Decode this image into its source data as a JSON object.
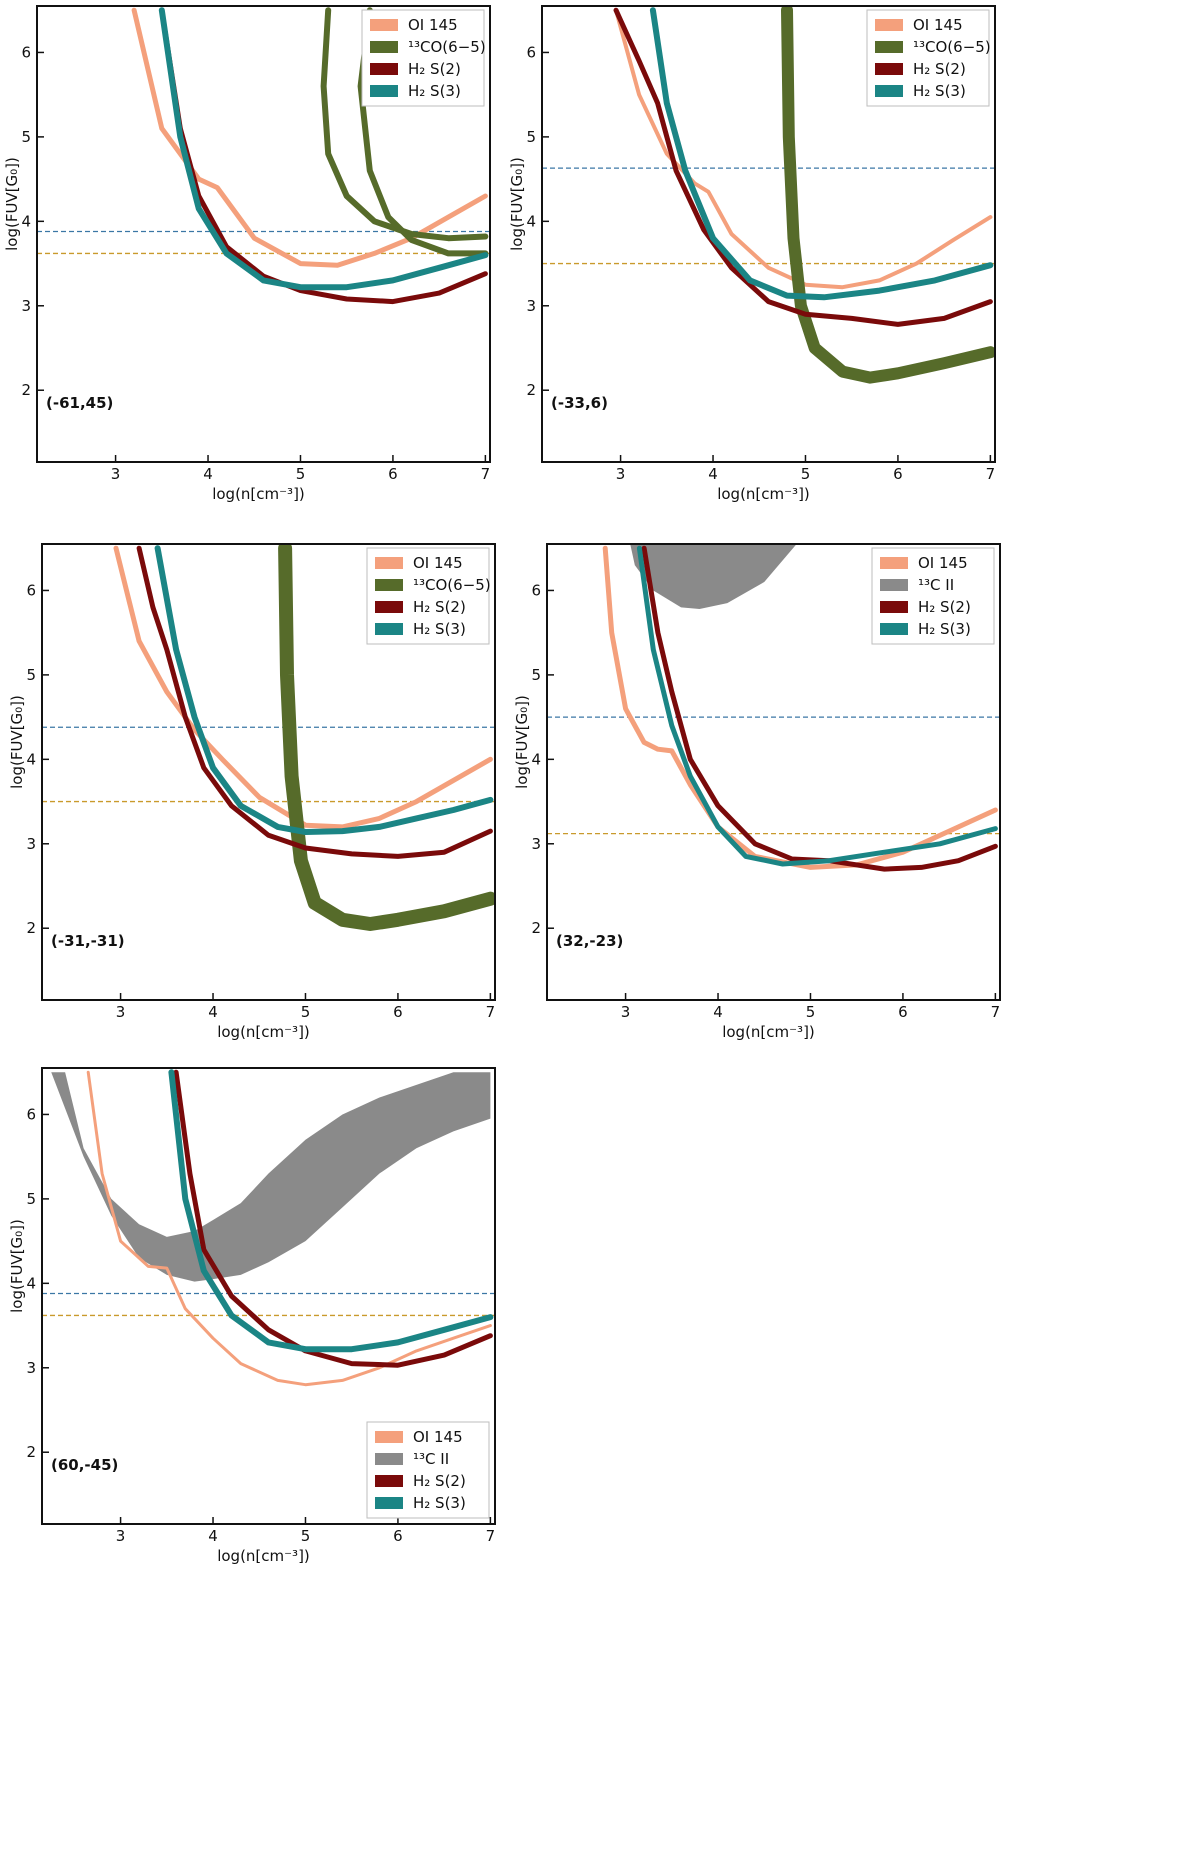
{
  "colors": {
    "oi": "#f4a07c",
    "co13": "#566b2a",
    "c13": "#8a8a8a",
    "h2s2": "#7a0a0a",
    "h2s3": "#1b8585",
    "hline_blue": "#3b77a5",
    "hline_orange": "#c99a2c",
    "axes": "#111111"
  },
  "chart_data": [
    {
      "type": "line",
      "position_label": "(-61,45)",
      "xlabel": "log(n[cm⁻³])",
      "ylabel": "log(FUV[G₀])",
      "xlim": [
        2.15,
        7.05
      ],
      "ylim": [
        1.15,
        6.55
      ],
      "xticks": [
        "3",
        "4",
        "5",
        "6",
        "7"
      ],
      "yticks": [
        "2",
        "3",
        "4",
        "5",
        "6"
      ],
      "legend_position": "top-right",
      "legend": [
        {
          "label": "OI 145",
          "color_key": "oi"
        },
        {
          "label": "¹³CO(6−5)",
          "color_key": "co13"
        },
        {
          "label": "H₂ S(2)",
          "color_key": "h2s2"
        },
        {
          "label": "H₂ S(3)",
          "color_key": "h2s3"
        }
      ],
      "hlines": [
        {
          "y": 3.88,
          "color_key": "hline_blue"
        },
        {
          "y": 3.62,
          "color_key": "hline_orange"
        }
      ],
      "series": [
        {
          "name": "OI 145",
          "color_key": "oi",
          "width": 5,
          "x": [
            3.2,
            3.5,
            3.9,
            4.1,
            4.5,
            5.0,
            5.4,
            5.8,
            6.2,
            6.6,
            7.0
          ],
          "y": [
            6.5,
            5.1,
            4.5,
            4.4,
            3.8,
            3.5,
            3.48,
            3.62,
            3.8,
            4.05,
            4.3
          ]
        },
        {
          "name": "13CO(6-5) upper",
          "color_key": "co13",
          "width": 6,
          "x": [
            5.3,
            5.25,
            5.3,
            5.5,
            5.8,
            6.2,
            6.6,
            7.0
          ],
          "y": [
            6.5,
            5.6,
            4.8,
            4.3,
            4.0,
            3.85,
            3.8,
            3.82
          ]
        },
        {
          "name": "13CO(6-5) lower",
          "color_key": "co13",
          "width": 6,
          "x": [
            5.75,
            5.65,
            5.75,
            5.95,
            6.2,
            6.6,
            7.0
          ],
          "y": [
            6.5,
            5.6,
            4.6,
            4.05,
            3.78,
            3.62,
            3.62
          ]
        },
        {
          "name": "H₂ S(2)",
          "color_key": "h2s2",
          "width": 5,
          "x": [
            3.5,
            3.7,
            3.9,
            4.2,
            4.6,
            5.0,
            5.5,
            6.0,
            6.5,
            7.0
          ],
          "y": [
            6.5,
            5.1,
            4.3,
            3.7,
            3.35,
            3.18,
            3.08,
            3.05,
            3.15,
            3.38
          ]
        },
        {
          "name": "H₂ S(3)",
          "color_key": "h2s3",
          "width": 6,
          "x": [
            3.5,
            3.7,
            3.9,
            4.2,
            4.6,
            5.0,
            5.5,
            6.0,
            6.5,
            7.0
          ],
          "y": [
            6.5,
            5.0,
            4.15,
            3.62,
            3.3,
            3.22,
            3.22,
            3.3,
            3.45,
            3.6
          ]
        }
      ]
    },
    {
      "type": "line",
      "position_label": "(-33,6)",
      "xlabel": "log(n[cm⁻³])",
      "ylabel": "log(FUV[G₀])",
      "xlim": [
        2.15,
        7.05
      ],
      "ylim": [
        1.15,
        6.55
      ],
      "xticks": [
        "3",
        "4",
        "5",
        "6",
        "7"
      ],
      "yticks": [
        "2",
        "3",
        "4",
        "5",
        "6"
      ],
      "legend_position": "top-right",
      "legend": [
        {
          "label": "OI 145",
          "color_key": "oi"
        },
        {
          "label": "¹³CO(6−5)",
          "color_key": "co13"
        },
        {
          "label": "H₂ S(2)",
          "color_key": "h2s2"
        },
        {
          "label": "H₂ S(3)",
          "color_key": "h2s3"
        }
      ],
      "hlines": [
        {
          "y": 4.63,
          "color_key": "hline_blue"
        },
        {
          "y": 3.5,
          "color_key": "hline_orange"
        }
      ],
      "series": [
        {
          "name": "OI 145",
          "color_key": "oi",
          "width": 4,
          "x": [
            2.95,
            3.2,
            3.5,
            3.8,
            3.95,
            4.2,
            4.6,
            5.0,
            5.4,
            5.8,
            6.2,
            6.6,
            7.0
          ],
          "y": [
            6.5,
            5.5,
            4.8,
            4.45,
            4.35,
            3.85,
            3.45,
            3.25,
            3.22,
            3.3,
            3.5,
            3.78,
            4.05
          ]
        },
        {
          "name": "13CO(6-5)",
          "color_key": "co13",
          "width": 12,
          "x": [
            4.8,
            4.82,
            4.87,
            4.95,
            5.1,
            5.4,
            5.7,
            6.0,
            6.5,
            7.0
          ],
          "y": [
            6.5,
            5.0,
            3.8,
            3.0,
            2.5,
            2.22,
            2.15,
            2.2,
            2.32,
            2.45
          ]
        },
        {
          "name": "H₂ S(2)",
          "color_key": "h2s2",
          "width": 5,
          "x": [
            2.95,
            3.2,
            3.4,
            3.6,
            3.9,
            4.2,
            4.6,
            5.0,
            5.5,
            6.0,
            6.5,
            7.0
          ],
          "y": [
            6.5,
            5.9,
            5.4,
            4.6,
            3.9,
            3.45,
            3.05,
            2.9,
            2.85,
            2.78,
            2.85,
            3.05
          ]
        },
        {
          "name": "H₂ S(3)",
          "color_key": "h2s3",
          "width": 6,
          "x": [
            3.35,
            3.5,
            3.7,
            4.0,
            4.4,
            4.8,
            5.2,
            5.8,
            6.4,
            7.0
          ],
          "y": [
            6.5,
            5.4,
            4.6,
            3.8,
            3.3,
            3.12,
            3.1,
            3.18,
            3.3,
            3.48
          ]
        }
      ]
    },
    {
      "type": "line",
      "position_label": "(-31,-31)",
      "xlabel": "log(n[cm⁻³])",
      "ylabel": "log(FUV[G₀])",
      "xlim": [
        2.15,
        7.05
      ],
      "ylim": [
        1.15,
        6.55
      ],
      "xticks": [
        "3",
        "4",
        "5",
        "6",
        "7"
      ],
      "yticks": [
        "2",
        "3",
        "4",
        "5",
        "6"
      ],
      "legend_position": "top-right",
      "legend": [
        {
          "label": "OI 145",
          "color_key": "oi"
        },
        {
          "label": "¹³CO(6−5)",
          "color_key": "co13"
        },
        {
          "label": "H₂ S(2)",
          "color_key": "h2s2"
        },
        {
          "label": "H₂ S(3)",
          "color_key": "h2s3"
        }
      ],
      "hlines": [
        {
          "y": 4.38,
          "color_key": "hline_blue"
        },
        {
          "y": 3.5,
          "color_key": "hline_orange"
        }
      ],
      "series": [
        {
          "name": "OI 145",
          "color_key": "oi",
          "width": 5,
          "x": [
            2.95,
            3.2,
            3.5,
            3.8,
            4.1,
            4.5,
            5.0,
            5.4,
            5.8,
            6.2,
            6.6,
            7.0
          ],
          "y": [
            6.5,
            5.4,
            4.8,
            4.35,
            4.0,
            3.55,
            3.22,
            3.2,
            3.3,
            3.5,
            3.75,
            4.0
          ]
        },
        {
          "name": "13CO(6-5)",
          "color_key": "co13",
          "width": 14,
          "x": [
            4.78,
            4.8,
            4.85,
            4.95,
            5.1,
            5.4,
            5.7,
            6.0,
            6.5,
            7.0
          ],
          "y": [
            6.5,
            5.0,
            3.8,
            2.8,
            2.3,
            2.1,
            2.05,
            2.1,
            2.2,
            2.35
          ]
        },
        {
          "name": "H₂ S(2)",
          "color_key": "h2s2",
          "width": 5,
          "x": [
            3.2,
            3.35,
            3.5,
            3.7,
            3.9,
            4.2,
            4.6,
            5.0,
            5.5,
            6.0,
            6.5,
            7.0
          ],
          "y": [
            6.5,
            5.8,
            5.3,
            4.5,
            3.9,
            3.45,
            3.1,
            2.95,
            2.88,
            2.85,
            2.9,
            3.15
          ]
        },
        {
          "name": "H₂ S(3)",
          "color_key": "h2s3",
          "width": 6,
          "x": [
            3.4,
            3.6,
            3.8,
            4.0,
            4.3,
            4.7,
            5.0,
            5.4,
            5.8,
            6.2,
            6.6,
            7.0
          ],
          "y": [
            6.5,
            5.3,
            4.5,
            3.9,
            3.45,
            3.2,
            3.14,
            3.15,
            3.2,
            3.3,
            3.4,
            3.52
          ]
        }
      ]
    },
    {
      "type": "line",
      "position_label": "(32,-23)",
      "xlabel": "log(n[cm⁻³])",
      "ylabel": "log(FUV[G₀])",
      "xlim": [
        2.15,
        7.05
      ],
      "ylim": [
        1.15,
        6.55
      ],
      "xticks": [
        "3",
        "4",
        "5",
        "6",
        "7"
      ],
      "yticks": [
        "2",
        "3",
        "4",
        "5",
        "6"
      ],
      "legend_position": "top-right",
      "legend": [
        {
          "label": "OI 145",
          "color_key": "oi"
        },
        {
          "label": "¹³C II",
          "color_key": "c13"
        },
        {
          "label": "H₂ S(2)",
          "color_key": "h2s2"
        },
        {
          "label": "H₂ S(3)",
          "color_key": "h2s3"
        }
      ],
      "hlines": [
        {
          "y": 4.5,
          "color_key": "hline_blue"
        },
        {
          "y": 3.12,
          "color_key": "hline_orange"
        }
      ],
      "band": {
        "name": "¹³C II",
        "color_key": "c13",
        "x": [
          3.05,
          3.1,
          3.3,
          3.6,
          3.8,
          4.1,
          4.5,
          4.85,
          4.6,
          4.2,
          3.8,
          3.5,
          3.2,
          3.05
        ],
        "y": [
          6.55,
          6.3,
          6.0,
          5.8,
          5.78,
          5.85,
          6.1,
          6.55,
          6.55,
          6.55,
          6.55,
          6.55,
          6.55,
          6.55
        ]
      },
      "series": [
        {
          "name": "OI 145",
          "color_key": "oi",
          "width": 5,
          "x": [
            2.78,
            2.85,
            3.0,
            3.2,
            3.35,
            3.5,
            3.7,
            4.0,
            4.4,
            5.0,
            5.5,
            6.0,
            6.5,
            7.0
          ],
          "y": [
            6.5,
            5.5,
            4.6,
            4.2,
            4.12,
            4.1,
            3.7,
            3.2,
            2.85,
            2.72,
            2.75,
            2.9,
            3.15,
            3.4
          ]
        },
        {
          "name": "H₂ S(2)",
          "color_key": "h2s2",
          "width": 5,
          "x": [
            3.2,
            3.35,
            3.5,
            3.7,
            4.0,
            4.4,
            4.8,
            5.2,
            5.8,
            6.2,
            6.6,
            7.0
          ],
          "y": [
            6.5,
            5.5,
            4.8,
            4.0,
            3.45,
            3.0,
            2.82,
            2.8,
            2.7,
            2.72,
            2.8,
            2.97
          ]
        },
        {
          "name": "H₂ S(3)",
          "color_key": "h2s3",
          "width": 5,
          "x": [
            3.15,
            3.3,
            3.5,
            3.7,
            4.0,
            4.3,
            4.7,
            5.2,
            5.8,
            6.4,
            7.0
          ],
          "y": [
            6.5,
            5.3,
            4.4,
            3.8,
            3.2,
            2.85,
            2.76,
            2.8,
            2.9,
            3.0,
            3.18
          ]
        }
      ]
    },
    {
      "type": "line",
      "position_label": "(60,-45)",
      "xlabel": "log(n[cm⁻³])",
      "ylabel": "log(FUV[G₀])",
      "xlim": [
        2.15,
        7.05
      ],
      "ylim": [
        1.15,
        6.55
      ],
      "xticks": [
        "3",
        "4",
        "5",
        "6",
        "7"
      ],
      "yticks": [
        "2",
        "3",
        "4",
        "5",
        "6"
      ],
      "legend_position": "bottom-right",
      "legend": [
        {
          "label": "OI 145",
          "color_key": "oi"
        },
        {
          "label": "¹³C II",
          "color_key": "c13"
        },
        {
          "label": "H₂ S(2)",
          "color_key": "h2s2"
        },
        {
          "label": "H₂ S(3)",
          "color_key": "h2s3"
        }
      ],
      "hlines": [
        {
          "y": 3.88,
          "color_key": "hline_blue"
        },
        {
          "y": 3.62,
          "color_key": "hline_orange"
        }
      ],
      "band": {
        "name": "¹³C II",
        "color_key": "c13",
        "x": [
          2.4,
          2.6,
          2.9,
          3.2,
          3.5,
          3.8,
          4.0,
          4.3,
          4.6,
          5.0,
          5.4,
          5.8,
          6.2,
          6.6,
          7.0,
          7.0,
          6.6,
          6.2,
          5.8,
          5.4,
          5.0,
          4.6,
          4.3,
          4.0,
          3.8,
          3.5,
          3.2,
          2.9,
          2.6,
          2.25
        ],
        "y": [
          6.5,
          5.6,
          5.0,
          4.7,
          4.55,
          4.62,
          4.75,
          4.95,
          5.3,
          5.7,
          6.0,
          6.2,
          6.35,
          6.5,
          6.5,
          5.95,
          5.8,
          5.6,
          5.3,
          4.9,
          4.5,
          4.25,
          4.1,
          4.05,
          4.02,
          4.1,
          4.3,
          4.8,
          5.5,
          6.5
        ]
      },
      "series": [
        {
          "name": "OI 145",
          "color_key": "oi",
          "width": 3,
          "x": [
            2.65,
            2.8,
            3.0,
            3.3,
            3.5,
            3.7,
            4.0,
            4.3,
            4.7,
            5.0,
            5.4,
            5.8,
            6.2,
            6.6,
            7.0
          ],
          "y": [
            6.5,
            5.3,
            4.5,
            4.2,
            4.18,
            3.7,
            3.35,
            3.05,
            2.85,
            2.8,
            2.85,
            3.0,
            3.2,
            3.35,
            3.5
          ]
        },
        {
          "name": "H₂ S(2)",
          "color_key": "h2s2",
          "width": 5,
          "x": [
            3.6,
            3.75,
            3.9,
            4.2,
            4.6,
            5.0,
            5.5,
            6.0,
            6.5,
            7.0
          ],
          "y": [
            6.5,
            5.3,
            4.4,
            3.85,
            3.45,
            3.2,
            3.05,
            3.03,
            3.15,
            3.38
          ]
        },
        {
          "name": "H₂ S(3)",
          "color_key": "h2s3",
          "width": 6,
          "x": [
            3.55,
            3.7,
            3.9,
            4.2,
            4.6,
            5.0,
            5.5,
            6.0,
            6.5,
            7.0
          ],
          "y": [
            6.5,
            5.0,
            4.15,
            3.62,
            3.3,
            3.22,
            3.22,
            3.3,
            3.45,
            3.6
          ]
        }
      ]
    }
  ]
}
